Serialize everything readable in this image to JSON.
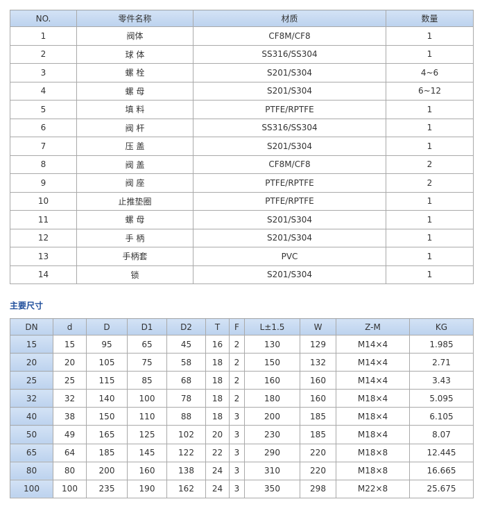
{
  "parts_table": {
    "headers": [
      "NO.",
      "零件名称",
      "材质",
      "数量"
    ],
    "rows": [
      [
        "1",
        "阀体",
        "CF8M/CF8",
        "1"
      ],
      [
        "2",
        "球 体",
        "SS316/SS304",
        "1"
      ],
      [
        "3",
        "螺 栓",
        "S201/S304",
        "4~6"
      ],
      [
        "4",
        "螺 母",
        "S201/S304",
        "6~12"
      ],
      [
        "5",
        "填 料",
        "PTFE/RPTFE",
        "1"
      ],
      [
        "6",
        "阀 杆",
        "SS316/SS304",
        "1"
      ],
      [
        "7",
        "压 盖",
        "S201/S304",
        "1"
      ],
      [
        "8",
        "阀 盖",
        "CF8M/CF8",
        "2"
      ],
      [
        "9",
        "阀 座",
        "PTFE/RPTFE",
        "2"
      ],
      [
        "10",
        "止推垫圈",
        "PTFE/RPTFE",
        "1"
      ],
      [
        "11",
        "螺 母",
        "S201/S304",
        "1"
      ],
      [
        "12",
        "手 柄",
        "S201/S304",
        "1"
      ],
      [
        "13",
        "手柄套",
        "PVC",
        "1"
      ],
      [
        "14",
        "锁",
        "S201/S304",
        "1"
      ]
    ]
  },
  "dimensions_title": "主要尺寸",
  "dimensions_table": {
    "headers": [
      "DN",
      "d",
      "D",
      "D1",
      "D2",
      "T",
      "F",
      "L±1.5",
      "W",
      "Z-M",
      "KG"
    ],
    "rows": [
      [
        "15",
        "15",
        "95",
        "65",
        "45",
        "16",
        "2",
        "130",
        "129",
        "M14×4",
        "1.985"
      ],
      [
        "20",
        "20",
        "105",
        "75",
        "58",
        "18",
        "2",
        "150",
        "132",
        "M14×4",
        "2.71"
      ],
      [
        "25",
        "25",
        "115",
        "85",
        "68",
        "18",
        "2",
        "160",
        "160",
        "M14×4",
        "3.43"
      ],
      [
        "32",
        "32",
        "140",
        "100",
        "78",
        "18",
        "2",
        "180",
        "160",
        "M18×4",
        "5.095"
      ],
      [
        "40",
        "38",
        "150",
        "110",
        "88",
        "18",
        "3",
        "200",
        "185",
        "M18×4",
        "6.105"
      ],
      [
        "50",
        "49",
        "165",
        "125",
        "102",
        "20",
        "3",
        "230",
        "185",
        "M18×4",
        "8.07"
      ],
      [
        "65",
        "64",
        "185",
        "145",
        "122",
        "22",
        "3",
        "290",
        "220",
        "M18×8",
        "12.445"
      ],
      [
        "80",
        "80",
        "200",
        "160",
        "138",
        "24",
        "3",
        "310",
        "220",
        "M18×8",
        "16.665"
      ],
      [
        "100",
        "100",
        "235",
        "190",
        "162",
        "24",
        "3",
        "350",
        "298",
        "M22×8",
        "25.675"
      ]
    ]
  }
}
